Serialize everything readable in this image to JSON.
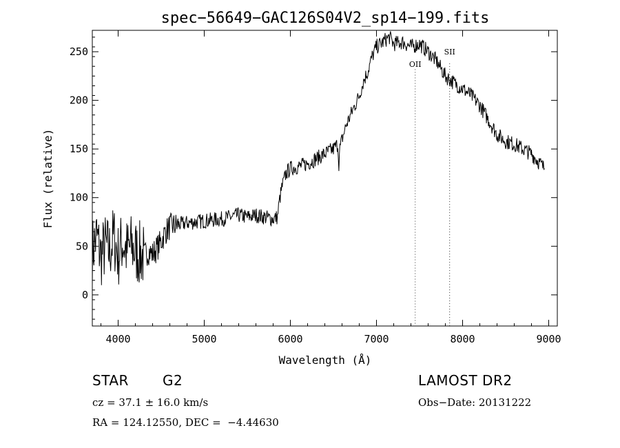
{
  "chart_data": {
    "type": "line",
    "title": "spec−56649−GAC126S04V2_sp14−199.fits",
    "xlabel": "Wavelength (Å)",
    "ylabel": "Flux (relative)",
    "xlim": [
      3700,
      9100
    ],
    "ylim": [
      -32,
      272
    ],
    "xticks": [
      4000,
      5000,
      6000,
      7000,
      8000,
      9000
    ],
    "yticks": [
      0,
      50,
      100,
      150,
      200,
      250
    ],
    "series": [
      {
        "values_note_x": "wavelength",
        "x": [
          3700,
          3750,
          3800,
          3850,
          3900,
          3950,
          4000,
          4050,
          4100,
          4150,
          4200,
          4250,
          4300,
          4350,
          4400,
          4450,
          4500,
          4550,
          4600,
          4700,
          4800,
          4900,
          5000,
          5100,
          5200,
          5300,
          5400,
          5500,
          5600,
          5700,
          5800,
          5850,
          5870,
          5900,
          5950,
          6000,
          6100,
          6200,
          6300,
          6400,
          6500,
          6550,
          6563,
          6575,
          6600,
          6650,
          6700,
          6750,
          6800,
          6850,
          6900,
          6950,
          7000,
          7050,
          7100,
          7150,
          7200,
          7300,
          7400,
          7500,
          7600,
          7700,
          7800,
          7900,
          8000,
          8100,
          8200,
          8300,
          8400,
          8500,
          8600,
          8700,
          8800,
          8900,
          8950
        ],
        "y": [
          45,
          60,
          40,
          50,
          45,
          60,
          40,
          55,
          45,
          50,
          45,
          42,
          40,
          45,
          42,
          48,
          55,
          65,
          70,
          72,
          74,
          75,
          76,
          77,
          78,
          80,
          82,
          80,
          82,
          80,
          78,
          80,
          95,
          110,
          125,
          130,
          132,
          135,
          140,
          145,
          150,
          155,
          135,
          150,
          160,
          175,
          185,
          195,
          205,
          220,
          230,
          245,
          255,
          258,
          262,
          265,
          258,
          260,
          255,
          258,
          250,
          240,
          225,
          218,
          212,
          205,
          195,
          180,
          165,
          158,
          155,
          150,
          145,
          135,
          130
        ]
      }
    ],
    "lines": [
      {
        "label": "OII",
        "x": 7450
      },
      {
        "label": "SII",
        "x": 7850
      }
    ]
  },
  "info": {
    "class": "STAR",
    "subclass": "G2",
    "survey": "LAMOST DR2",
    "cz": "cz = 37.1 ± 16.0 km/s",
    "obsdate": "Obs−Date: 20131222",
    "radec": "RA = 124.12550, DEC =  −4.44630"
  }
}
